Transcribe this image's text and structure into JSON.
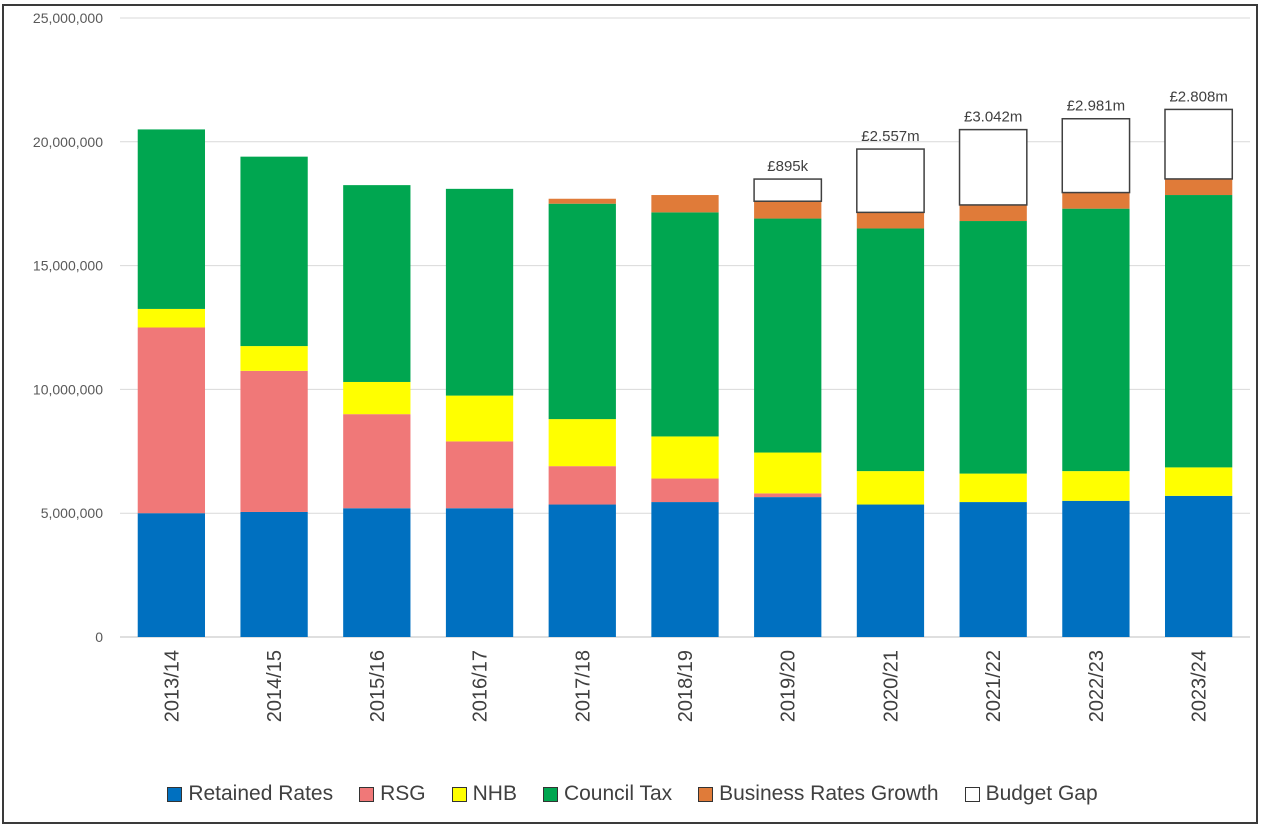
{
  "chart_data": {
    "type": "bar",
    "stacked": true,
    "title": "",
    "xlabel": "",
    "ylabel": "",
    "ylim": [
      0,
      25000000
    ],
    "yticks": [
      0,
      5000000,
      10000000,
      15000000,
      20000000,
      25000000
    ],
    "ytick_labels": [
      "0",
      "5,000,000",
      "10,000,000",
      "15,000,000",
      "20,000,000",
      "25,000,000"
    ],
    "grid": true,
    "legend_position": "bottom",
    "categories": [
      "2013/14",
      "2014/15",
      "2015/16",
      "2016/17",
      "2017/18",
      "2018/19",
      "2019/20",
      "2020/21",
      "2021/22",
      "2022/23",
      "2023/24"
    ],
    "series": [
      {
        "name": "Retained Rates",
        "color": "#0070c0",
        "values": [
          5000000,
          5050000,
          5200000,
          5200000,
          5350000,
          5450000,
          5650000,
          5350000,
          5450000,
          5500000,
          5700000
        ]
      },
      {
        "name": "RSG",
        "color": "#f07878",
        "values": [
          7500000,
          5700000,
          3800000,
          2700000,
          1550000,
          950000,
          150000,
          0,
          0,
          0,
          0
        ]
      },
      {
        "name": "NHB",
        "color": "#ffff00",
        "values": [
          750000,
          1000000,
          1300000,
          1850000,
          1900000,
          1700000,
          1650000,
          1350000,
          1150000,
          1200000,
          1150000
        ]
      },
      {
        "name": "Council Tax",
        "color": "#00a650",
        "values": [
          7250000,
          7650000,
          7950000,
          8350000,
          8700000,
          9050000,
          9450000,
          9800000,
          10200000,
          10600000,
          11000000
        ]
      },
      {
        "name": "Business Rates Growth",
        "color": "#e07b39",
        "values": [
          0,
          0,
          0,
          0,
          200000,
          700000,
          700000,
          650000,
          650000,
          650000,
          650000
        ]
      },
      {
        "name": "Budget Gap",
        "color": "#ffffff",
        "values": [
          0,
          0,
          0,
          0,
          0,
          0,
          895000,
          2557000,
          3042000,
          2981000,
          2808000
        ]
      }
    ],
    "annotations": [
      "",
      "",
      "",
      "",
      "",
      "",
      "£895k",
      "£2.557m",
      "£3.042m",
      "£2.981m",
      "£2.808m"
    ]
  }
}
